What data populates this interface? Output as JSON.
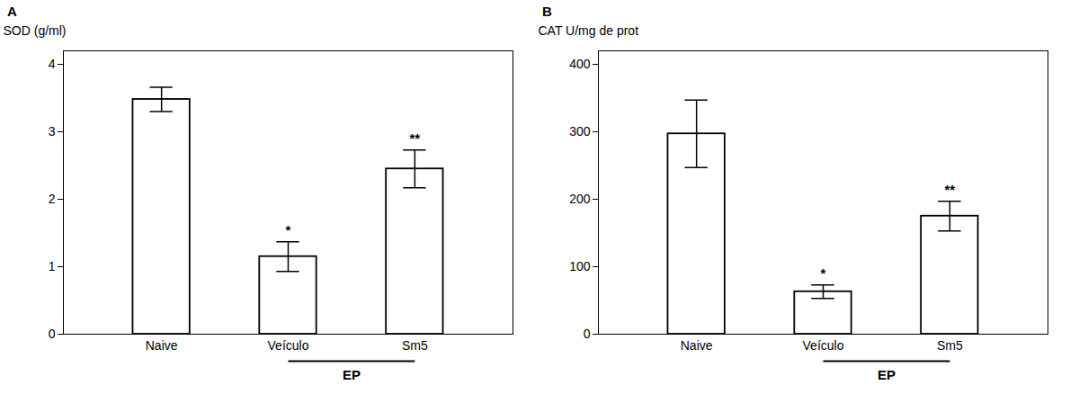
{
  "chart_data": [
    {
      "type": "bar",
      "title": "A",
      "categories": [
        "Naive",
        "Veículo",
        "Sm5"
      ],
      "values": [
        3.48,
        1.15,
        2.45
      ],
      "errors": [
        0.18,
        0.22,
        0.28
      ],
      "ylabel": "SOD (g/ml)",
      "ylim": [
        0,
        4.2
      ],
      "yticks": [
        0,
        1,
        2,
        3,
        4
      ],
      "color": "#ffffff",
      "grid": false,
      "annotations": [
        {
          "text": "*",
          "category": "Veículo"
        },
        {
          "text": "**",
          "category": "Sm5"
        },
        {
          "text": "EP",
          "categories": [
            "Veículo",
            "Sm5"
          ]
        }
      ]
    },
    {
      "type": "bar",
      "title": "B",
      "categories": [
        "Naive",
        "Veículo",
        "Sm5"
      ],
      "values": [
        297,
        63,
        175
      ],
      "errors": [
        50,
        10,
        22
      ],
      "ylabel": "CAT U/mg de prot",
      "ylim": [
        0,
        420
      ],
      "yticks": [
        0,
        100,
        200,
        300,
        400
      ],
      "color": "#ffffff",
      "grid": false,
      "annotations": [
        {
          "text": "*",
          "category": "Veículo"
        },
        {
          "text": "**",
          "category": "Sm5"
        },
        {
          "text": "EP",
          "categories": [
            "Veículo",
            "Sm5"
          ]
        }
      ]
    }
  ]
}
